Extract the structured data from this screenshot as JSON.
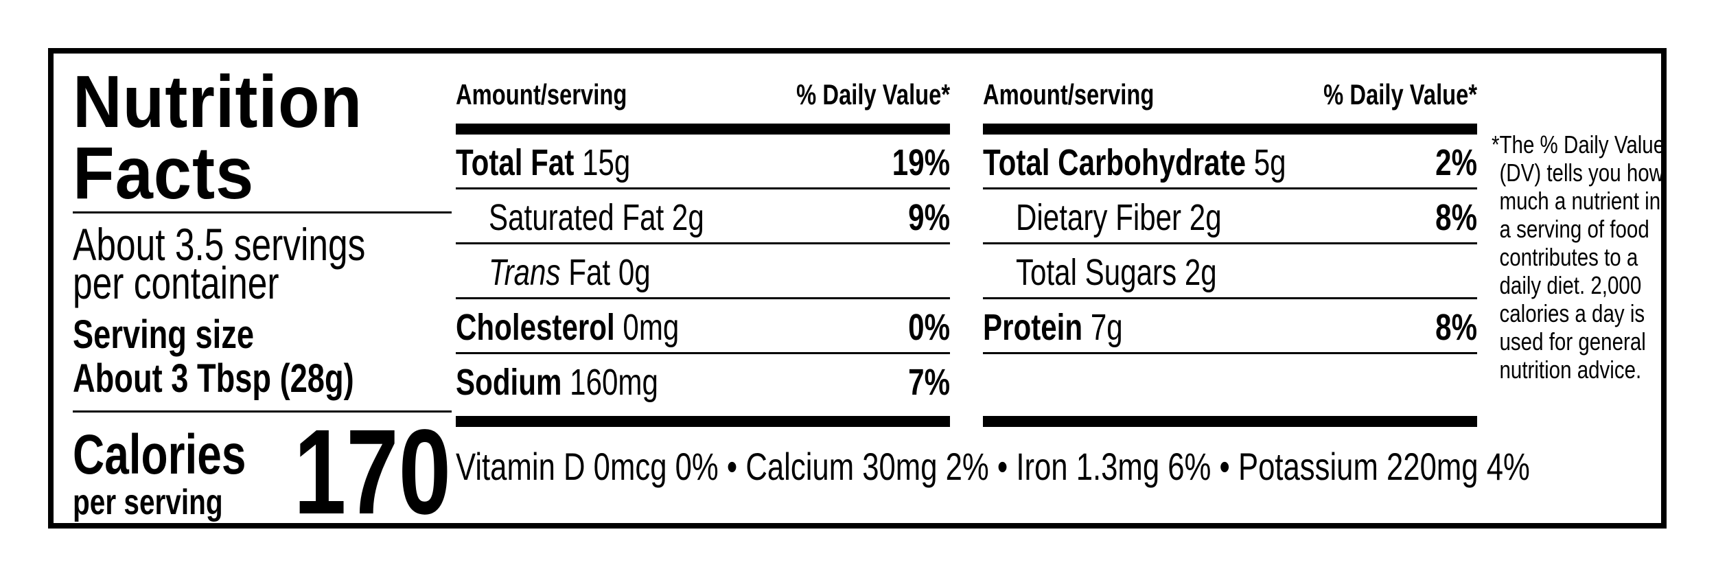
{
  "left": {
    "title_line1": "Nutrition",
    "title_line2": "Facts",
    "servings_line1": "About 3.5 servings",
    "servings_line2": "per container",
    "serving_size_label": "Serving size",
    "serving_size_value": "About 3 Tbsp (28g)",
    "calories_label": "Calories",
    "per_serving": "per serving",
    "calories_value": "170"
  },
  "table_left": {
    "header_amount": "Amount/serving",
    "header_dv": "% Daily Value*",
    "rows": [
      {
        "name": "Total Fat",
        "amount": "15g",
        "dv": "19%"
      },
      {
        "name": "Saturated Fat",
        "amount": "2g",
        "dv": "9%"
      },
      {
        "name": "Trans",
        "suffix": "Fat 0g",
        "dv": ""
      },
      {
        "name": "Cholesterol",
        "amount": "0mg",
        "dv": "0%"
      },
      {
        "name": "Sodium",
        "amount": "160mg",
        "dv": "7%"
      }
    ]
  },
  "table_right": {
    "header_amount": "Amount/serving",
    "header_dv": "% Daily Value*",
    "rows": [
      {
        "name": "Total Carbohydrate",
        "amount": "5g",
        "dv": "2%"
      },
      {
        "name": "Dietary Fiber",
        "amount": "2g",
        "dv": "8%"
      },
      {
        "name": "Total Sugars",
        "amount": "2g",
        "dv": ""
      },
      {
        "name": "Protein",
        "amount": "7g",
        "dv": "8%"
      }
    ]
  },
  "vitamins": "Vitamin D 0mcg 0% • Calcium 30mg 2% • Iron 1.3mg 6% • Potassium 220mg 4%",
  "footnote": {
    "lines": [
      "*The % Daily Value",
      "(DV) tells you how",
      "much a nutrient in",
      "a serving of food",
      "contributes to a",
      "daily diet. 2,000",
      "calories a day is",
      "used for general",
      "nutrition advice."
    ]
  }
}
